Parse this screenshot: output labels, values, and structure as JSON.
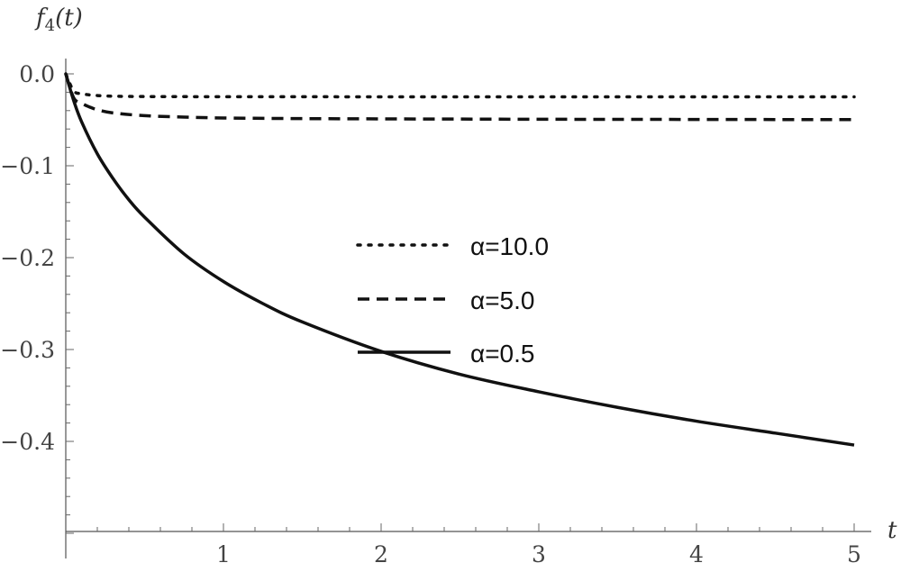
{
  "chart_data": {
    "type": "line",
    "title": "",
    "xlabel": "t",
    "ylabel": "f4(t)",
    "ylabel_main": "f",
    "ylabel_sub": "4",
    "ylabel_tail": "(t)",
    "xlim": [
      0,
      5.15
    ],
    "ylim": [
      -0.505,
      0.01
    ],
    "x_ticks": [
      1,
      2,
      3,
      4,
      5
    ],
    "x_tick_labels": [
      "1",
      "2",
      "3",
      "4",
      "5"
    ],
    "y_ticks": [
      0.0,
      -0.1,
      -0.2,
      -0.3,
      -0.4
    ],
    "y_tick_labels": [
      "0.0",
      "−0.1",
      "−0.2",
      "−0.3",
      "−0.4"
    ],
    "grid": false,
    "legend_position": "center",
    "series": [
      {
        "name": "α=10.0",
        "style": "dotted",
        "x": [
          0,
          0.05,
          0.1,
          0.15,
          0.2,
          0.3,
          0.5,
          0.75,
          1,
          1.5,
          2,
          2.5,
          3,
          3.5,
          4,
          4.5,
          5
        ],
        "y": [
          0,
          -0.0185,
          -0.0215,
          -0.0229,
          -0.0236,
          -0.0243,
          -0.0247,
          -0.0248,
          -0.0249,
          -0.0249,
          -0.025,
          -0.025,
          -0.025,
          -0.025,
          -0.025,
          -0.025,
          -0.025
        ]
      },
      {
        "name": "α=5.0",
        "style": "dashed",
        "x": [
          0,
          0.05,
          0.1,
          0.15,
          0.2,
          0.3,
          0.5,
          0.75,
          1,
          1.5,
          2,
          2.5,
          3,
          3.5,
          4,
          4.5,
          5
        ],
        "y": [
          0,
          -0.026,
          -0.032,
          -0.036,
          -0.039,
          -0.0425,
          -0.0455,
          -0.047,
          -0.048,
          -0.0487,
          -0.049,
          -0.0492,
          -0.0494,
          -0.0495,
          -0.0496,
          -0.0497,
          -0.0498
        ]
      },
      {
        "name": "α=0.5",
        "style": "solid",
        "x": [
          0,
          0.05,
          0.1,
          0.2,
          0.3,
          0.4,
          0.5,
          0.75,
          1,
          1.25,
          1.5,
          2,
          2.5,
          3,
          3.5,
          4,
          4.5,
          5
        ],
        "y": [
          0,
          -0.029,
          -0.052,
          -0.087,
          -0.114,
          -0.137,
          -0.156,
          -0.196,
          -0.226,
          -0.25,
          -0.27,
          -0.302,
          -0.327,
          -0.346,
          -0.363,
          -0.378,
          -0.391,
          -0.404
        ]
      }
    ]
  }
}
